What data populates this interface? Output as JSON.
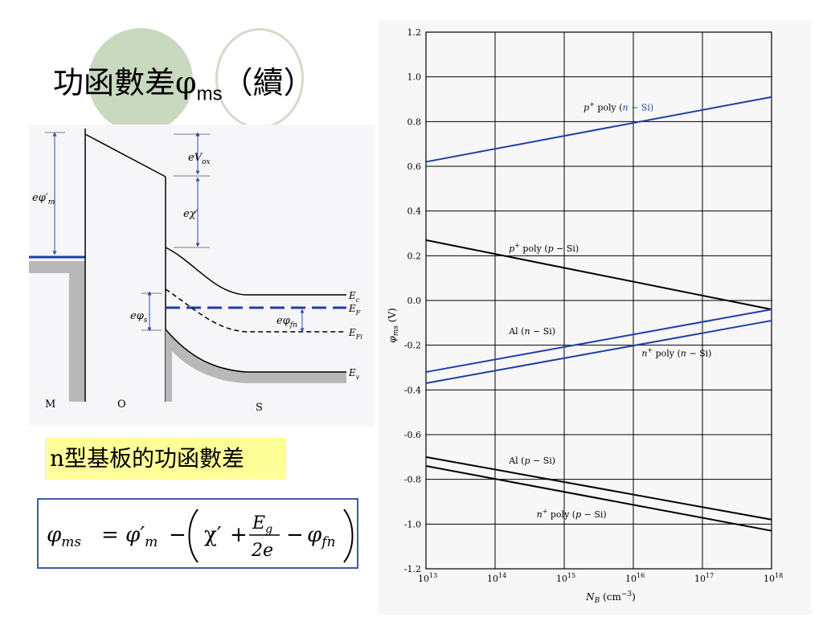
{
  "title": {
    "main": "功函數差φ",
    "sub": "ms",
    "suffix": "（續）"
  },
  "caption": "n型基板的功函數差",
  "formula": {
    "lhs": "φ",
    "lhs_sub": "ms",
    "eq": "=",
    "phi_m": "φ′",
    "phi_m_sub": "m",
    "minus": "−",
    "chi": "χ′",
    "plus": "+",
    "eg": "E",
    "eg_sub": "g",
    "two_e": "2e",
    "phi_fn": "φ",
    "phi_fn_sub": "fn"
  },
  "diagram": {
    "regions": {
      "m": "M",
      "o": "O",
      "s": "S"
    },
    "labels": {
      "e_phi_m": "eφ′",
      "e_phi_m_sub": "m",
      "e_vox": "eV",
      "e_vox_sub": "ox",
      "e_chi": "eχ′",
      "e_phi_s": "eφ",
      "e_phi_s_sub": "s",
      "e_phi_fn": "eφ",
      "e_phi_fn_sub": "fn",
      "ec": "E",
      "ec_sub": "c",
      "ef": "E",
      "ef_sub": "F",
      "efi": "E",
      "efi_sub": "Fi",
      "ev": "E",
      "ev_sub": "v"
    },
    "colors": {
      "fermi": "#1f3fa8",
      "band": "#000000",
      "shade": "#b8b8b8"
    }
  },
  "chart_data": {
    "type": "line",
    "xlabel": "N",
    "xlabel_sub": "B",
    "xlabel_unit": " (cm",
    "xlabel_unit_sup": "−3",
    "xlabel_close": ")",
    "ylabel": "φ",
    "ylabel_sub": "ms",
    "ylabel_unit": " (V)",
    "x_scale": "log",
    "xlim_exp": [
      13,
      18
    ],
    "x_ticks": [
      {
        "base": "10",
        "exp": "13"
      },
      {
        "base": "10",
        "exp": "14"
      },
      {
        "base": "10",
        "exp": "15"
      },
      {
        "base": "10",
        "exp": "16"
      },
      {
        "base": "10",
        "exp": "17"
      },
      {
        "base": "10",
        "exp": "18"
      }
    ],
    "ylim": [
      -1.2,
      1.2
    ],
    "y_ticks": [
      "1.2",
      "1.0",
      "0.8",
      "0.6",
      "0.4",
      "0.2",
      "0.0",
      "-0.2",
      "-0.4",
      "-0.6",
      "-0.8",
      "-1.0",
      "-1.2"
    ],
    "grid": true,
    "series": [
      {
        "name": "p+ poly (n − Si)",
        "color": "#1f3fa8",
        "x": [
          10000000000000.0,
          1e+18
        ],
        "y": [
          0.62,
          0.91
        ]
      },
      {
        "name": "p+ poly (p − Si)",
        "color": "#000000",
        "x": [
          10000000000000.0,
          1e+18
        ],
        "y": [
          0.27,
          -0.04
        ]
      },
      {
        "name": "Al (n − Si)",
        "color": "#1f3fa8",
        "x": [
          10000000000000.0,
          1e+18
        ],
        "y": [
          -0.32,
          -0.04
        ]
      },
      {
        "name": "n+ poly (n − Si)",
        "color": "#1f3fa8",
        "x": [
          10000000000000.0,
          1e+18
        ],
        "y": [
          -0.37,
          -0.09
        ]
      },
      {
        "name": "Al (p − Si)",
        "color": "#000000",
        "x": [
          10000000000000.0,
          1e+18
        ],
        "y": [
          -0.7,
          -0.98
        ]
      },
      {
        "name": "n+ poly (p − Si)",
        "color": "#000000",
        "x": [
          10000000000000.0,
          1e+18
        ],
        "y": [
          -0.74,
          -1.03
        ]
      }
    ],
    "annotations": [
      {
        "base": "p",
        "sup": "+",
        "mid": " poly (",
        "ital": "n",
        "rest": " − Si)",
        "color": "#1f3fa8",
        "at_x_exp": 15.28,
        "at_y": 0.85
      },
      {
        "base": "p",
        "sup": "+",
        "mid": " poly (",
        "ital": "p",
        "rest": " − Si)",
        "color": "#000000",
        "at_x_exp": 14.2,
        "at_y": 0.22
      },
      {
        "base": "",
        "sup": "",
        "mid": "Al (",
        "ital": "n",
        "rest": " − Si)",
        "color": "#000000",
        "at_x_exp": 14.2,
        "at_y": -0.15
      },
      {
        "base": "n",
        "sup": "+",
        "mid": " poly (",
        "ital": "n",
        "rest": " − Si)",
        "color": "#000000",
        "at_x_exp": 16.12,
        "at_y": -0.25
      },
      {
        "base": "",
        "sup": "",
        "mid": "Al (",
        "ital": "p",
        "rest": " − Si)",
        "color": "#000000",
        "at_x_exp": 14.2,
        "at_y": -0.73
      },
      {
        "base": "n",
        "sup": "+",
        "mid": " poly (",
        "ital": "p",
        "rest": " − Si)",
        "color": "#000000",
        "at_x_exp": 14.6,
        "at_y": -0.97
      }
    ]
  }
}
